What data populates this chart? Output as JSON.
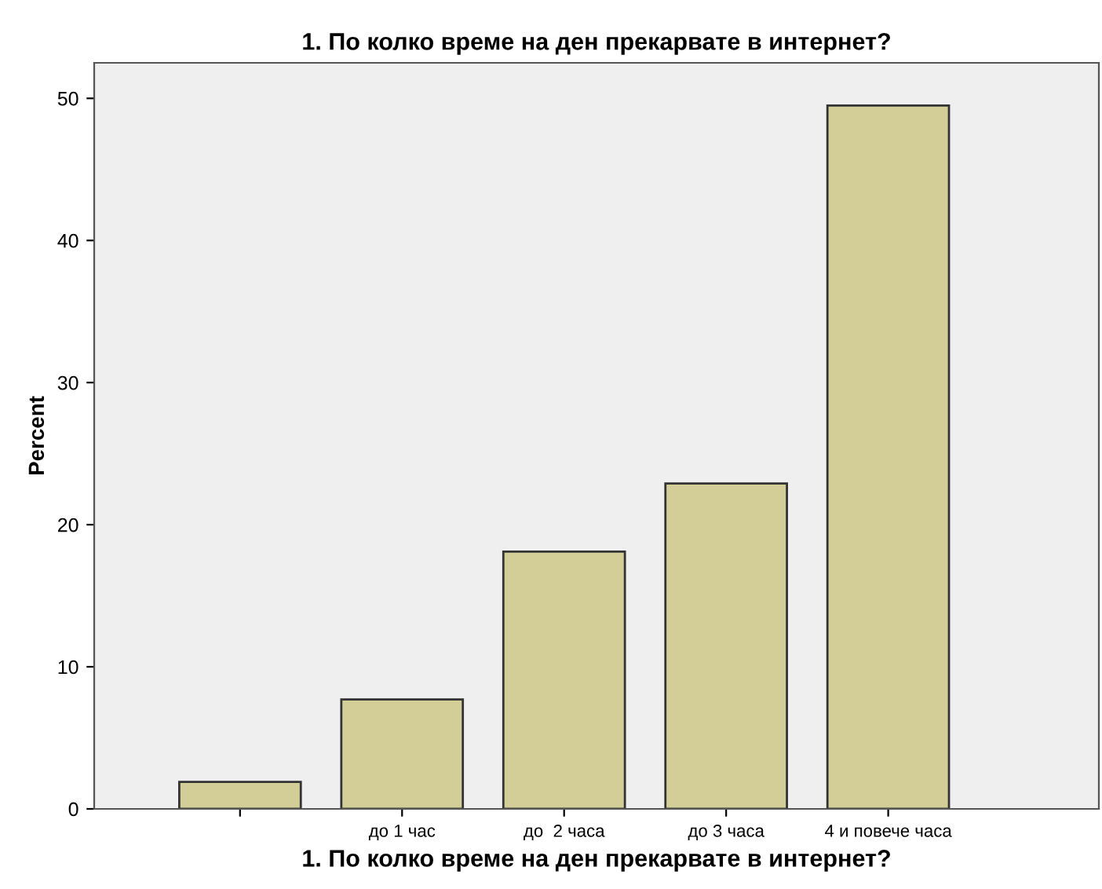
{
  "chart_data": {
    "type": "bar",
    "title": "1. По колко време на ден прекарвате в интернет?",
    "xlabel": "1. По колко време на ден прекарвате в интернет?",
    "ylabel": "Percent",
    "categories": [
      null,
      "до 1 час",
      "до  2 часа",
      "до 3 часа",
      "4 и повече часа"
    ],
    "values": [
      1.9,
      7.7,
      18.1,
      22.9,
      49.5
    ],
    "color": "#d3ce97",
    "ylim": [
      0,
      52.5
    ],
    "yticks": [
      0,
      10,
      20,
      30,
      40,
      50
    ],
    "grid": false,
    "legend": false
  }
}
